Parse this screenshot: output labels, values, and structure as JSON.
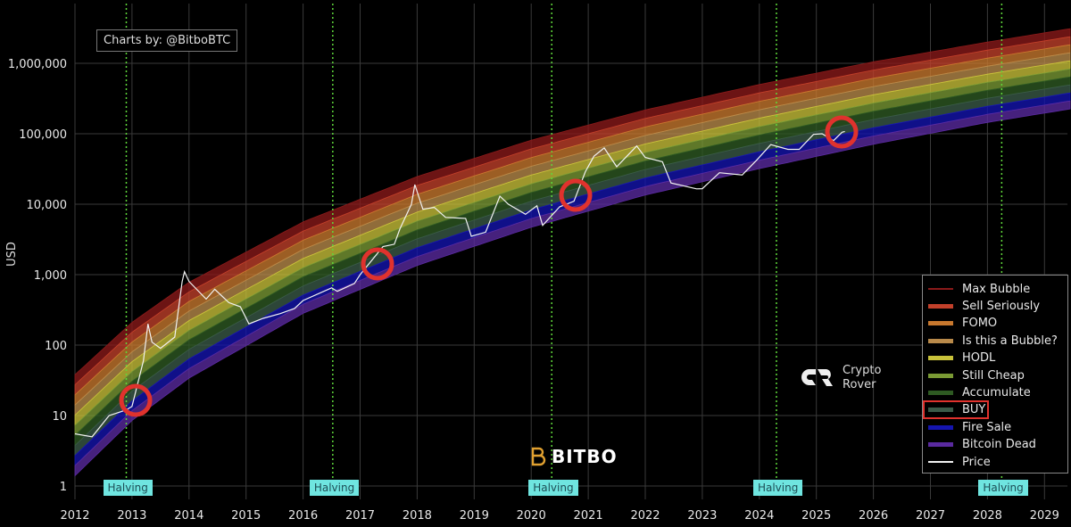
{
  "credit": "Charts by: @BitboBTC",
  "watermarks": {
    "bitbo": "BITBO",
    "crypto_rover": [
      "Crypto",
      "Rover"
    ]
  },
  "chart_data": {
    "type": "line",
    "title": "",
    "ylabel": "USD",
    "xlabel": "",
    "yscale": "log",
    "ylim": [
      1,
      3500000
    ],
    "xlim": [
      2012,
      2029.45
    ],
    "grid": true,
    "legend_position": "bottom-right",
    "y_ticks": [
      "1",
      "10",
      "100",
      "1,000",
      "10,000",
      "100,000",
      "1,000,000"
    ],
    "y_tick_values": [
      1,
      10,
      100,
      1000,
      10000,
      100000,
      1000000
    ],
    "x_ticks": [
      "2012",
      "2013",
      "2014",
      "2015",
      "2016",
      "2017",
      "2018",
      "2019",
      "2020",
      "2021",
      "2022",
      "2023",
      "2024",
      "2025",
      "2026",
      "2027",
      "2028",
      "2029"
    ],
    "halvings": {
      "label": "Halving",
      "years": [
        2012.9,
        2016.52,
        2020.36,
        2024.3,
        2028.25
      ],
      "color": "#6fe5e0",
      "line_color": "#5fd83a"
    },
    "rainbow": {
      "years": [
        2012,
        2013,
        2014,
        2016,
        2018,
        2020,
        2022,
        2024,
        2026,
        2028,
        2029.45
      ],
      "upper": [
        38,
        210,
        780,
        5600,
        24700,
        81000,
        218000,
        500000,
        1050000,
        2000000,
        3100000
      ],
      "lower": [
        1.4,
        8.5,
        34,
        282,
        1350,
        4700,
        13500,
        32000,
        71000,
        145000,
        225000
      ]
    },
    "series": [
      {
        "name": "Max Bubble",
        "color": "#8b1a1a"
      },
      {
        "name": "Sell Seriously",
        "color": "#c2402a"
      },
      {
        "name": "FOMO",
        "color": "#c8782e"
      },
      {
        "name": "Is this a Bubble?",
        "color": "#b98a4a"
      },
      {
        "name": "HODL",
        "color": "#c9c23a"
      },
      {
        "name": "Still Cheap",
        "color": "#7a9a34"
      },
      {
        "name": "Accumulate",
        "color": "#2e5a22"
      },
      {
        "name": "BUY!",
        "color": "#3a5a48",
        "highlighted": true
      },
      {
        "name": "Fire Sale",
        "color": "#1515b0"
      },
      {
        "name": "Bitcoin Dead",
        "color": "#5a2aa0"
      },
      {
        "name": "Price",
        "color": "#f2f2f2",
        "x": [
          2012.0,
          2012.3,
          2012.6,
          2012.9,
          2013.0,
          2013.2,
          2013.28,
          2013.35,
          2013.5,
          2013.75,
          2013.88,
          2013.92,
          2014.0,
          2014.15,
          2014.3,
          2014.45,
          2014.7,
          2014.9,
          2015.05,
          2015.3,
          2015.6,
          2015.85,
          2016.0,
          2016.5,
          2016.6,
          2016.9,
          2017.0,
          2017.4,
          2017.6,
          2017.7,
          2017.9,
          2017.96,
          2018.1,
          2018.3,
          2018.5,
          2018.85,
          2018.95,
          2019.2,
          2019.45,
          2019.6,
          2019.9,
          2020.1,
          2020.2,
          2020.5,
          2020.75,
          2020.95,
          2021.1,
          2021.28,
          2021.5,
          2021.85,
          2022.0,
          2022.3,
          2022.45,
          2022.9,
          2023.0,
          2023.3,
          2023.7,
          2023.95,
          2024.2,
          2024.5,
          2024.7,
          2024.95,
          2025.1,
          2025.3,
          2025.45,
          2025.5
        ],
        "y": [
          5.5,
          5,
          10,
          12,
          13.5,
          60,
          200,
          110,
          90,
          130,
          800,
          1100,
          800,
          600,
          450,
          620,
          400,
          350,
          200,
          240,
          280,
          330,
          430,
          650,
          580,
          750,
          1000,
          2500,
          2700,
          4500,
          10000,
          19000,
          8500,
          9000,
          6500,
          6300,
          3500,
          4000,
          13000,
          10000,
          7200,
          9500,
          5000,
          9200,
          11000,
          29000,
          48000,
          63000,
          34000,
          67000,
          46000,
          40000,
          20000,
          16500,
          16600,
          28000,
          26000,
          42000,
          70000,
          60000,
          60000,
          98000,
          100000,
          80000,
          105000,
          108000
        ]
      }
    ]
  }
}
